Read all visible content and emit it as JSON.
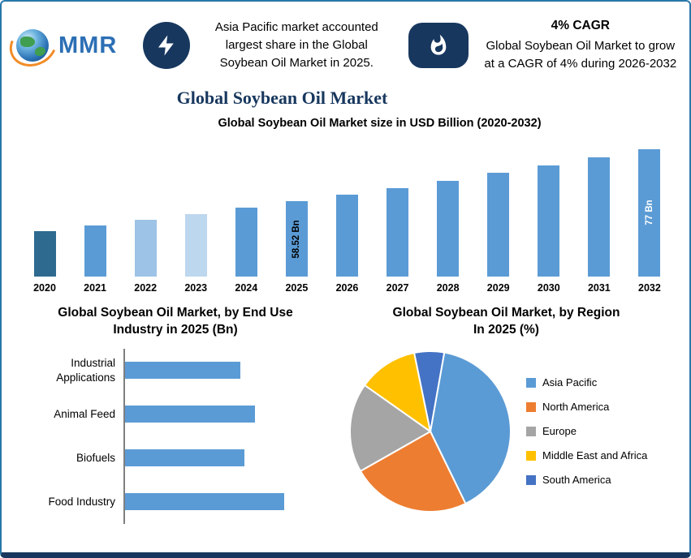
{
  "header": {
    "logo_text": "MMR",
    "insight_left": "Asia Pacific market accounted largest share in the Global Soybean Oil Market in 2025.",
    "cagr_title": "4% CAGR",
    "insight_right": "Global Soybean Oil Market to grow at a CAGR of 4% during 2026-2032"
  },
  "page_title": "Global Soybean Oil Market",
  "colors": {
    "navy": "#17375E",
    "accent_blue": "#5B9BD5",
    "border_blue": "#2878A8"
  },
  "chart_data": [
    {
      "id": "market_size",
      "type": "bar",
      "title": "Global Soybean Oil Market size in USD Billion (2020-2032)",
      "unit": "USD Billion",
      "categories": [
        "2020",
        "2021",
        "2022",
        "2023",
        "2024",
        "2025",
        "2026",
        "2027",
        "2028",
        "2029",
        "2030",
        "2031",
        "2032"
      ],
      "values": [
        48.1,
        50.0,
        52.0,
        54.1,
        56.3,
        58.52,
        60.9,
        63.3,
        65.8,
        68.5,
        71.2,
        74.0,
        77.0
      ],
      "bar_colors": [
        "#2E6A8F",
        "#5B9BD5",
        "#9DC3E6",
        "#BDD7EE",
        "#5B9BD5",
        "#5B9BD5",
        "#5B9BD5",
        "#5B9BD5",
        "#5B9BD5",
        "#5B9BD5",
        "#5B9BD5",
        "#5B9BD5",
        "#5B9BD5"
      ],
      "annotations": [
        {
          "category": "2025",
          "label": "58.52 Bn",
          "text_color": "#000000"
        },
        {
          "category": "2032",
          "label": "77 Bn",
          "text_color": "#FFFFFF"
        }
      ]
    },
    {
      "id": "end_use",
      "type": "bar",
      "orientation": "horizontal",
      "title_lines": [
        "Global Soybean Oil Market, by End Use",
        "Industry  in 2025 (Bn)"
      ],
      "categories": [
        "Industrial Applications",
        "Animal Feed",
        "Biofuels",
        "Food Industry"
      ],
      "values": [
        12.9,
        14.5,
        13.4,
        17.8
      ],
      "bar_color": "#5B9BD5"
    },
    {
      "id": "by_region",
      "type": "pie",
      "title_lines": [
        "Global Soybean Oil Market, by Region",
        "In 2025 (%)"
      ],
      "start_angle_deg": 10,
      "legend_position": "right",
      "slices": [
        {
          "label": "Asia Pacific",
          "value": 40,
          "color": "#5B9BD5"
        },
        {
          "label": "North America",
          "value": 24,
          "color": "#ED7D31"
        },
        {
          "label": "Europe",
          "value": 18,
          "color": "#A5A5A5"
        },
        {
          "label": "Middle East and Africa",
          "value": 12,
          "color": "#FFC000"
        },
        {
          "label": "South America",
          "value": 6,
          "color": "#4472C4"
        }
      ]
    }
  ]
}
